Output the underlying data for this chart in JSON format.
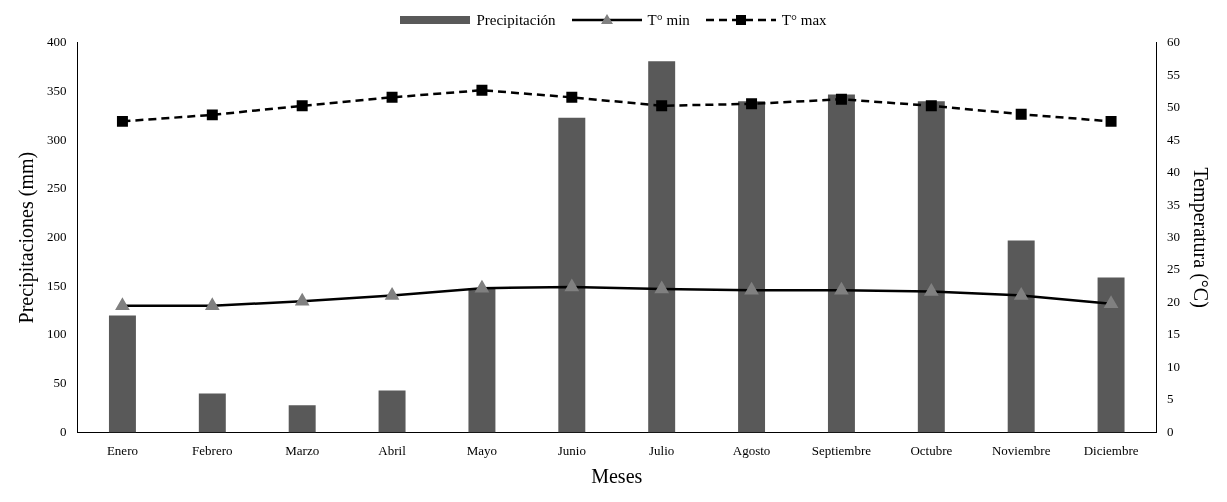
{
  "chart_data": {
    "type": "bar",
    "categories": [
      "Enero",
      "Febrero",
      "Marzo",
      "Abril",
      "Mayo",
      "Junio",
      "Julio",
      "Agosto",
      "Septiembre",
      "Octubre",
      "Noviembre",
      "Diciembre"
    ],
    "series": [
      {
        "name": "Precipitación",
        "color": "#595959",
        "values": [
          120,
          40,
          28,
          43,
          148,
          323,
          381,
          340,
          347,
          340,
          197,
          159
        ]
      },
      {
        "name": "T° min",
        "type": "line",
        "axis": "y2",
        "color": "#000000",
        "marker": "triangle",
        "line_style": "solid",
        "values": [
          19.5,
          19.5,
          20.2,
          21.1,
          22.2,
          22.4,
          22.1,
          21.9,
          21.9,
          21.7,
          21.1,
          19.8
        ]
      },
      {
        "name": "T° max",
        "type": "line",
        "axis": "y2",
        "color": "#000000",
        "marker": "square",
        "line_style": "dashed",
        "values": [
          47.9,
          48.9,
          50.3,
          51.6,
          52.7,
          51.6,
          50.3,
          50.6,
          51.3,
          50.3,
          49.0,
          47.9
        ]
      }
    ],
    "xlabel": "Meses",
    "ylabel": "Precipitaciones (mm)",
    "y2label": "Temperatura (°C)",
    "ylim": [
      0,
      400
    ],
    "yticks": [
      0,
      50,
      100,
      150,
      200,
      250,
      300,
      350,
      400
    ],
    "y2lim": [
      0,
      60
    ],
    "y2ticks": [
      0,
      5,
      10,
      15,
      20,
      25,
      30,
      35,
      40,
      45,
      50,
      55,
      60
    ],
    "grid": false,
    "legend": "top"
  }
}
